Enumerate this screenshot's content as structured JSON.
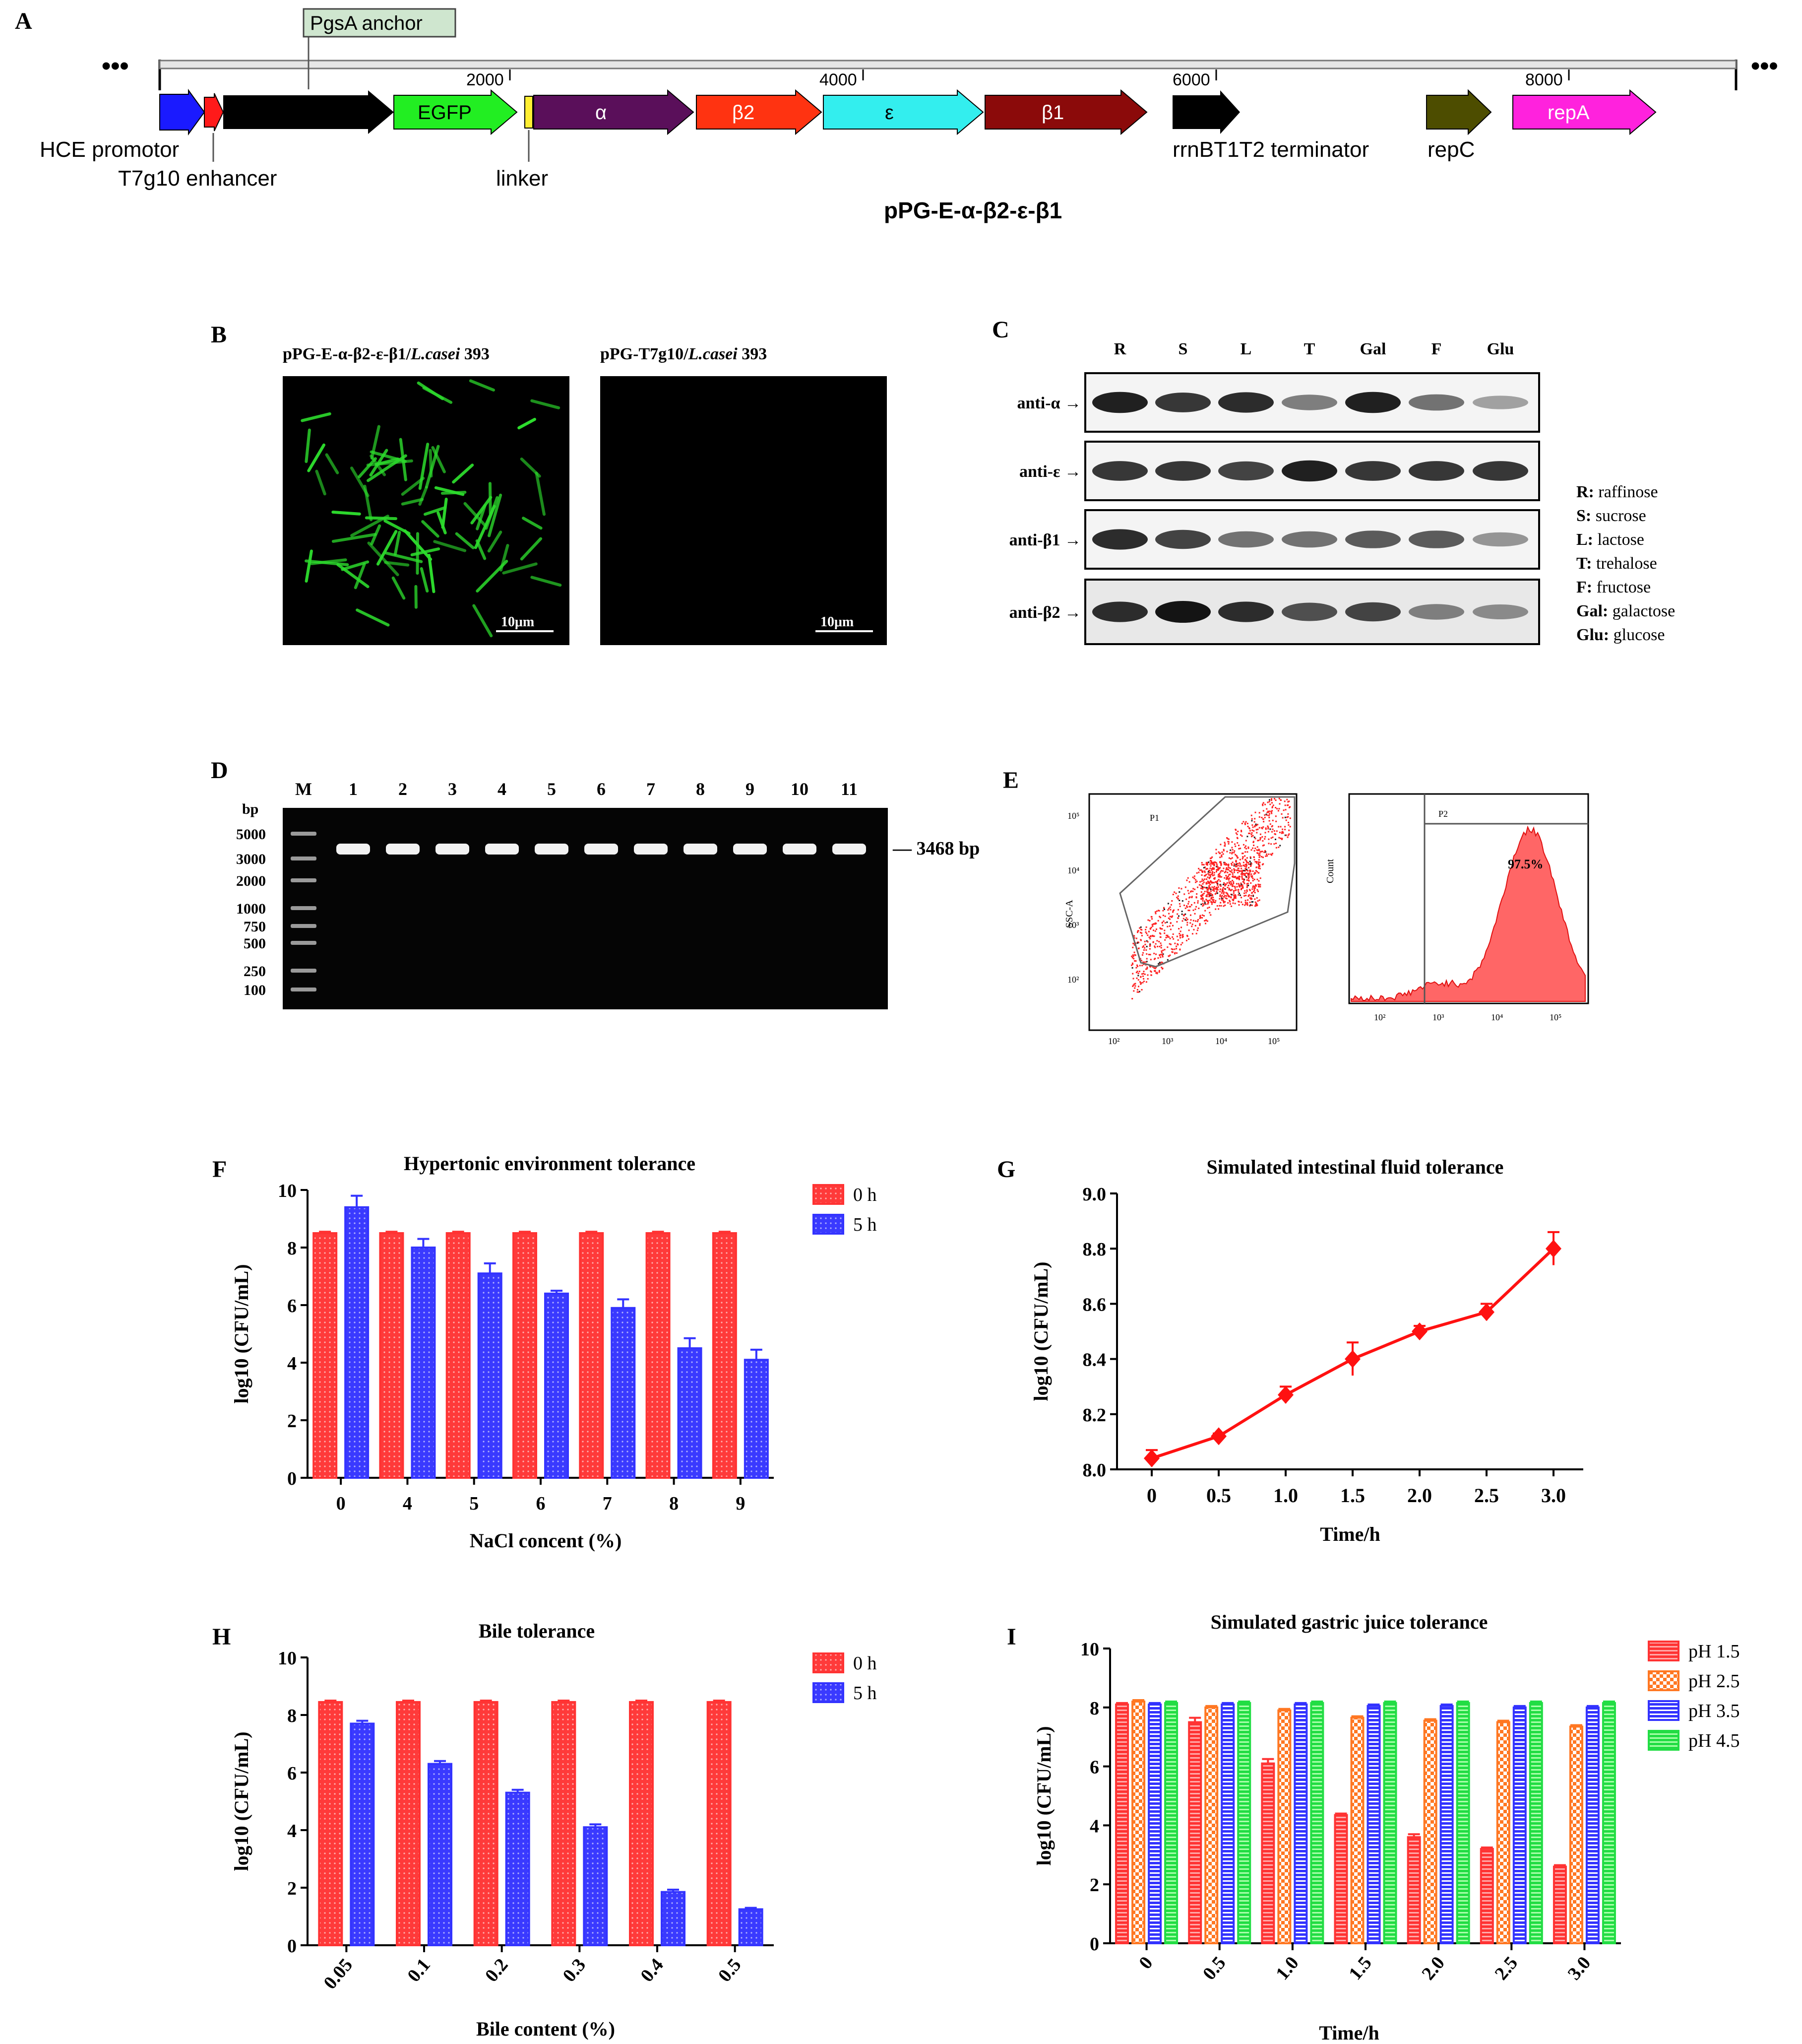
{
  "panel_letters": [
    "A",
    "B",
    "C",
    "D",
    "E",
    "F",
    "G",
    "H",
    "I"
  ],
  "panel_a": {
    "ellipsis": "•••",
    "scale_ticks": [
      "2000",
      "4000",
      "6000",
      "8000"
    ],
    "features": {
      "pgsA": "PgsA anchor",
      "egfp": "EGFP",
      "alpha": "α",
      "beta2": "β2",
      "epsilon": "ε",
      "beta1": "β1",
      "repA": "repA"
    },
    "labels": {
      "hce": "HCE promotor",
      "t7g10": "T7g10 enhancer",
      "linker": "linker",
      "terminator": "rrnBT1T2 terminator",
      "repC": "repC"
    },
    "plasmid_name": "pPG-E-α-β2-ε-β1",
    "colors": {
      "hce": "#1a1aff",
      "t7g10": "#ff1a1a",
      "pgsA": "#000000",
      "egfp": "#22ee22",
      "linker": "#ffee33",
      "alpha": "#5a0f5a",
      "beta2": "#ff3311",
      "epsilon": "#33eeee",
      "beta1": "#8b0a0a",
      "terminator": "#000000",
      "repC": "#4d4d00",
      "repA": "#ff22dd",
      "pgsA_label_bg": "#cfe6cf"
    }
  },
  "panel_b": {
    "left_title_prefix": "pPG-E-α-β2-ε-β1/",
    "left_title_species": "L.casei",
    "left_title_suffix": " 393",
    "right_title_prefix": "pPG-T7g10/",
    "right_title_species": "L.casei",
    "right_title_suffix": " 393",
    "scale_bar": "10μm",
    "fluorescence_color": "#2ddc2d"
  },
  "panel_c": {
    "lanes": [
      "R",
      "S",
      "L",
      "T",
      "Gal",
      "F",
      "Glu"
    ],
    "antibodies": [
      "anti-α →",
      "anti-ε →",
      "anti-β1 →",
      "anti-β2 →"
    ],
    "legend": [
      {
        "abbr": "R:",
        "name": " raffinose"
      },
      {
        "abbr": "S:",
        "name": " sucrose"
      },
      {
        "abbr": "L:",
        "name": " lactose"
      },
      {
        "abbr": "T:",
        "name": " trehalose"
      },
      {
        "abbr": "F:",
        "name": " fructose"
      },
      {
        "abbr": "Gal:",
        "name": " galactose"
      },
      {
        "abbr": "Glu:",
        "name": " glucose"
      }
    ],
    "band_intensity": [
      [
        0.95,
        0.85,
        0.9,
        0.55,
        0.95,
        0.6,
        0.4
      ],
      [
        0.85,
        0.85,
        0.8,
        0.95,
        0.85,
        0.85,
        0.85
      ],
      [
        0.9,
        0.8,
        0.6,
        0.6,
        0.7,
        0.7,
        0.45
      ],
      [
        0.9,
        1.0,
        0.9,
        0.75,
        0.8,
        0.55,
        0.5
      ]
    ]
  },
  "panel_d": {
    "lanes": [
      "M",
      "1",
      "2",
      "3",
      "4",
      "5",
      "6",
      "7",
      "8",
      "9",
      "10",
      "11"
    ],
    "bp_label": "bp",
    "marker_sizes": [
      "5000",
      "3000",
      "2000",
      "1000",
      "750",
      "500",
      "250",
      "100"
    ],
    "band_label": "— 3468 bp"
  },
  "panel_e": {
    "gate1": "P1",
    "gate2": "P2",
    "percentage": "97.5%",
    "y_label_left": "SSC-A",
    "y_label_right": "Count",
    "left_y_ticks": [
      "10⁵",
      "10⁴",
      "10³",
      "10²"
    ],
    "left_x_ticks": [
      "10²",
      "10³",
      "10⁴",
      "10⁵"
    ],
    "right_x_ticks": [
      "10²",
      "10³",
      "10⁴",
      "10⁵"
    ],
    "dot_color": "#ff2222"
  },
  "chart_data": [
    {
      "panel": "F",
      "type": "bar",
      "title": "Hypertonic environment tolerance",
      "xlabel": "NaCl concent (%)",
      "ylabel": "log10 (CFU/mL)",
      "categories": [
        "0",
        "4",
        "5",
        "6",
        "7",
        "8",
        "9"
      ],
      "ylim": [
        0,
        10
      ],
      "yticks": [
        "0",
        "2",
        "4",
        "6",
        "8",
        "10"
      ],
      "series": [
        {
          "name": "0 h",
          "values": [
            8.5,
            8.5,
            8.5,
            8.5,
            8.5,
            8.5,
            8.5
          ],
          "errors": [
            0.05,
            0.05,
            0.05,
            0.05,
            0.05,
            0.05,
            0.05
          ],
          "color": "#ff3333"
        },
        {
          "name": "5 h",
          "values": [
            9.4,
            8.0,
            7.1,
            6.4,
            5.9,
            4.5,
            4.1
          ],
          "errors": [
            0.4,
            0.3,
            0.35,
            0.1,
            0.3,
            0.35,
            0.35
          ],
          "color": "#3333ff"
        }
      ],
      "legend_position": "top-right"
    },
    {
      "panel": "G",
      "type": "line",
      "title": "Simulated intestinal fluid tolerance",
      "xlabel": "Time/h",
      "ylabel": "log10 (CFU/mL)",
      "x": [
        0,
        0.5,
        1.0,
        1.5,
        2.0,
        2.5,
        3.0
      ],
      "xticks": [
        "0",
        "0.5",
        "1.0",
        "1.5",
        "2.0",
        "2.5",
        "3.0"
      ],
      "ylim": [
        8.0,
        9.0
      ],
      "yticks": [
        "8.0",
        "8.2",
        "8.4",
        "8.6",
        "8.8",
        "9.0"
      ],
      "series": [
        {
          "values": [
            8.04,
            8.12,
            8.27,
            8.4,
            8.5,
            8.57,
            8.8
          ],
          "errors": [
            0.03,
            0.01,
            0.03,
            0.06,
            0.02,
            0.03,
            0.06
          ],
          "color": "#ff1111"
        }
      ]
    },
    {
      "panel": "H",
      "type": "bar",
      "title": "Bile tolerance",
      "xlabel": "Bile content (%)",
      "ylabel": "log10 (CFU/mL)",
      "categories": [
        "0.05",
        "0.1",
        "0.2",
        "0.3",
        "0.4",
        "0.5"
      ],
      "ylim": [
        0,
        10
      ],
      "yticks": [
        "0",
        "2",
        "4",
        "6",
        "8",
        "10"
      ],
      "series": [
        {
          "name": "0 h",
          "values": [
            8.45,
            8.45,
            8.45,
            8.45,
            8.45,
            8.45
          ],
          "errors": [
            0.05,
            0.05,
            0.05,
            0.05,
            0.05,
            0.05
          ],
          "color": "#ff3333"
        },
        {
          "name": "5 h",
          "values": [
            7.7,
            6.3,
            5.3,
            4.1,
            1.85,
            1.25
          ],
          "errors": [
            0.1,
            0.1,
            0.1,
            0.1,
            0.08,
            0.05
          ],
          "color": "#3333ff"
        }
      ],
      "legend_position": "top-right"
    },
    {
      "panel": "I",
      "type": "bar",
      "title": "Simulated gastric juice tolerance",
      "xlabel": "Time/h",
      "ylabel": "log10 (CFU/mL)",
      "categories": [
        "0",
        "0.5",
        "1.0",
        "1.5",
        "2.0",
        "2.5",
        "3.0"
      ],
      "ylim": [
        0,
        10
      ],
      "yticks": [
        "0",
        "2",
        "4",
        "6",
        "8",
        "10"
      ],
      "series": [
        {
          "name": "pH 1.5",
          "values": [
            8.1,
            7.5,
            6.1,
            4.35,
            3.6,
            3.2,
            2.6
          ],
          "errors": [
            0.05,
            0.15,
            0.15,
            0.05,
            0.1,
            0.05,
            0.05
          ],
          "color": "#ff3333"
        },
        {
          "name": "pH 2.5",
          "values": [
            8.2,
            8.0,
            7.9,
            7.65,
            7.55,
            7.5,
            7.35
          ],
          "errors": [
            0.05,
            0.05,
            0.05,
            0.05,
            0.05,
            0.05,
            0.05
          ],
          "color": "#ff7722"
        },
        {
          "name": "pH 3.5",
          "values": [
            8.1,
            8.1,
            8.1,
            8.05,
            8.05,
            8.0,
            8.0
          ],
          "errors": [
            0.05,
            0.05,
            0.05,
            0.05,
            0.05,
            0.05,
            0.05
          ],
          "color": "#3333ff"
        },
        {
          "name": "pH 4.5",
          "values": [
            8.15,
            8.15,
            8.15,
            8.15,
            8.15,
            8.15,
            8.15
          ],
          "errors": [
            0.05,
            0.05,
            0.05,
            0.05,
            0.05,
            0.05,
            0.05
          ],
          "color": "#22dd44"
        }
      ],
      "legend_position": "top-right"
    }
  ]
}
